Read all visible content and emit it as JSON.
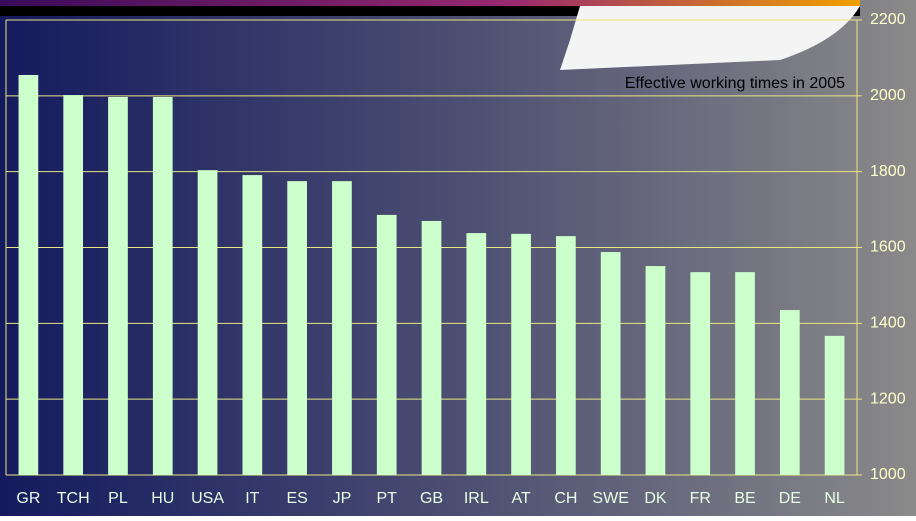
{
  "chart_data": {
    "type": "bar",
    "title": "Effective working times in 2005",
    "categories": [
      "GR",
      "TCH",
      "PL",
      "HU",
      "USA",
      "IT",
      "ES",
      "JP",
      "PT",
      "GB",
      "IRL",
      "AT",
      "CH",
      "SWE",
      "DK",
      "FR",
      "BE",
      "DE",
      "NL"
    ],
    "values": [
      2055,
      2002,
      1997,
      1997,
      1804,
      1791,
      1775,
      1775,
      1686,
      1670,
      1638,
      1636,
      1630,
      1588,
      1551,
      1535,
      1535,
      1435,
      1367
    ],
    "color": "#ccffcc",
    "ylim": [
      1000,
      2200
    ],
    "yticks": [
      1000,
      1200,
      1400,
      1600,
      1800,
      2000,
      2200
    ],
    "grid": true
  }
}
